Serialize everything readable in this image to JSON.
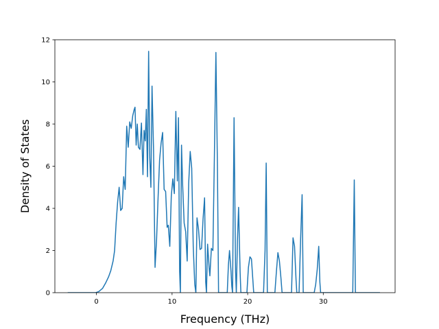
{
  "chart_data": {
    "type": "line",
    "title": "",
    "xlabel": "Frequency (THz)",
    "ylabel": "Density of States",
    "xlim": [
      -5.5,
      39.5
    ],
    "ylim": [
      0,
      12
    ],
    "xticks": [
      0,
      10,
      20,
      30
    ],
    "yticks": [
      0,
      2,
      4,
      6,
      8,
      10,
      12
    ],
    "grid": false,
    "legend": "none",
    "series": [
      {
        "color": "#1f77b4",
        "points": [
          [
            -3.8,
            0
          ],
          [
            -0.1,
            0
          ],
          [
            0.3,
            0.05
          ],
          [
            0.8,
            0.2
          ],
          [
            1.2,
            0.45
          ],
          [
            1.6,
            0.75
          ],
          [
            1.9,
            1.05
          ],
          [
            2.2,
            1.5
          ],
          [
            2.4,
            2.0
          ],
          [
            2.6,
            3.3
          ],
          [
            2.8,
            4.3
          ],
          [
            3.0,
            5.0
          ],
          [
            3.2,
            3.9
          ],
          [
            3.4,
            4.0
          ],
          [
            3.6,
            5.5
          ],
          [
            3.8,
            4.9
          ],
          [
            4.0,
            7.9
          ],
          [
            4.2,
            6.9
          ],
          [
            4.4,
            8.1
          ],
          [
            4.6,
            7.8
          ],
          [
            4.8,
            8.4
          ],
          [
            5.0,
            8.7
          ],
          [
            5.1,
            8.8
          ],
          [
            5.25,
            7.0
          ],
          [
            5.4,
            8.0
          ],
          [
            5.55,
            6.9
          ],
          [
            5.75,
            6.8
          ],
          [
            5.95,
            8.05
          ],
          [
            6.15,
            5.6
          ],
          [
            6.3,
            7.7
          ],
          [
            6.45,
            7.2
          ],
          [
            6.6,
            8.7
          ],
          [
            6.75,
            5.5
          ],
          [
            6.9,
            11.45
          ],
          [
            7.05,
            6.4
          ],
          [
            7.2,
            5.0
          ],
          [
            7.35,
            9.8
          ],
          [
            7.55,
            6.8
          ],
          [
            7.75,
            1.2
          ],
          [
            7.95,
            2.5
          ],
          [
            8.15,
            4.5
          ],
          [
            8.35,
            6.3
          ],
          [
            8.55,
            7.1
          ],
          [
            8.75,
            7.6
          ],
          [
            8.95,
            4.9
          ],
          [
            9.15,
            4.8
          ],
          [
            9.35,
            3.1
          ],
          [
            9.5,
            3.2
          ],
          [
            9.7,
            2.2
          ],
          [
            9.9,
            4.6
          ],
          [
            10.1,
            5.4
          ],
          [
            10.3,
            4.7
          ],
          [
            10.5,
            8.6
          ],
          [
            10.7,
            5.3
          ],
          [
            10.85,
            8.3
          ],
          [
            11.0,
            1.0
          ],
          [
            11.1,
            0
          ],
          [
            11.25,
            7.0
          ],
          [
            11.4,
            5.1
          ],
          [
            11.6,
            3.3
          ],
          [
            11.8,
            2.9
          ],
          [
            12.0,
            1.5
          ],
          [
            12.2,
            5.2
          ],
          [
            12.4,
            6.7
          ],
          [
            12.6,
            5.9
          ],
          [
            12.8,
            2.2
          ],
          [
            13.0,
            0.4
          ],
          [
            13.15,
            0
          ],
          [
            13.3,
            3.55
          ],
          [
            13.5,
            3.0
          ],
          [
            13.7,
            2.05
          ],
          [
            13.9,
            2.1
          ],
          [
            14.1,
            3.5
          ],
          [
            14.3,
            4.5
          ],
          [
            14.45,
            0.5
          ],
          [
            14.55,
            0
          ],
          [
            14.7,
            2.3
          ],
          [
            14.9,
            1.2
          ],
          [
            15.0,
            0.8
          ],
          [
            15.2,
            2.1
          ],
          [
            15.4,
            2.0
          ],
          [
            15.6,
            6.5
          ],
          [
            15.8,
            11.4
          ],
          [
            16.0,
            6.0
          ],
          [
            16.15,
            0
          ],
          [
            17.3,
            0
          ],
          [
            17.45,
            1.3
          ],
          [
            17.6,
            2.0
          ],
          [
            17.8,
            1.0
          ],
          [
            17.9,
            0.3
          ],
          [
            18.0,
            0
          ],
          [
            18.2,
            8.3
          ],
          [
            18.4,
            1.0
          ],
          [
            18.5,
            0
          ],
          [
            18.65,
            2.5
          ],
          [
            18.8,
            4.05
          ],
          [
            19.0,
            1.0
          ],
          [
            19.1,
            0
          ],
          [
            19.9,
            0
          ],
          [
            20.1,
            1.2
          ],
          [
            20.3,
            1.7
          ],
          [
            20.5,
            1.6
          ],
          [
            20.65,
            0.8
          ],
          [
            20.8,
            0
          ],
          [
            22.1,
            0
          ],
          [
            22.3,
            2.0
          ],
          [
            22.45,
            6.15
          ],
          [
            22.6,
            0
          ],
          [
            23.6,
            0
          ],
          [
            23.8,
            1.0
          ],
          [
            24.0,
            1.9
          ],
          [
            24.2,
            1.5
          ],
          [
            24.4,
            0.7
          ],
          [
            24.55,
            0
          ],
          [
            25.8,
            0
          ],
          [
            26.0,
            2.6
          ],
          [
            26.2,
            2.2
          ],
          [
            26.4,
            0.6
          ],
          [
            26.5,
            0
          ],
          [
            26.8,
            0
          ],
          [
            27.0,
            2.5
          ],
          [
            27.2,
            4.65
          ],
          [
            27.35,
            0
          ],
          [
            28.8,
            0
          ],
          [
            29.0,
            0.4
          ],
          [
            29.2,
            1.1
          ],
          [
            29.4,
            2.2
          ],
          [
            29.55,
            0.5
          ],
          [
            29.65,
            0
          ],
          [
            33.9,
            0
          ],
          [
            34.1,
            5.35
          ],
          [
            34.25,
            0
          ],
          [
            37.5,
            0
          ]
        ]
      }
    ]
  }
}
